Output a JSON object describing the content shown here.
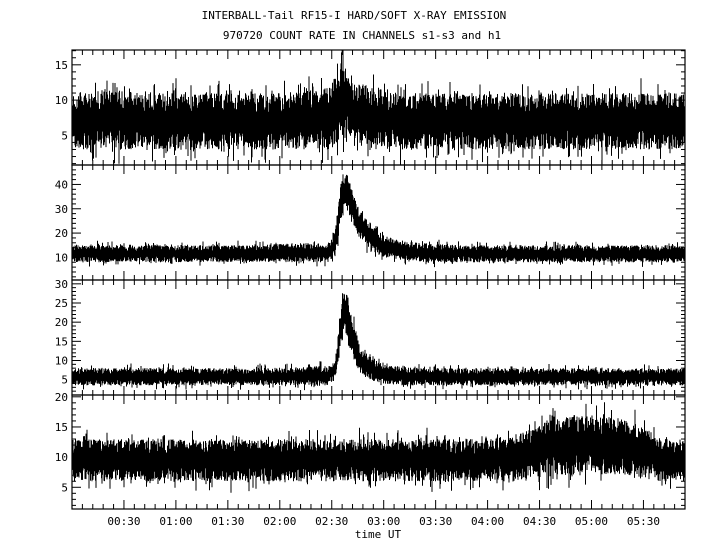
{
  "chart_data": {
    "type": "line",
    "title": "INTERBALL-Tail RF15-I HARD/SOFT X-RAY EMISSION",
    "subtitle": "970720  COUNT RATE IN CHANNELS s1-s3 and h1",
    "xlabel": "time UT",
    "xlim": [
      "00:00",
      "05:54"
    ],
    "x_tick_labels": [
      "00:30",
      "01:00",
      "01:30",
      "02:00",
      "02:30",
      "03:00",
      "03:30",
      "04:00",
      "04:30",
      "05:00",
      "05:30"
    ],
    "grid": false,
    "line_color": "#000000",
    "x": [
      "00:00",
      "00:20",
      "00:40",
      "01:00",
      "01:20",
      "01:40",
      "02:00",
      "02:20",
      "02:28",
      "02:32",
      "02:34",
      "02:36",
      "02:38",
      "02:40",
      "02:43",
      "02:46",
      "02:50",
      "02:55",
      "03:00",
      "03:10",
      "03:20",
      "03:40",
      "04:00",
      "04:20",
      "04:40",
      "04:50",
      "05:00",
      "05:10",
      "05:20",
      "05:30",
      "05:40",
      "05:54"
    ],
    "panels": [
      {
        "ylim": [
          0.8,
          17.1
        ],
        "y_tick_labels": [
          "5",
          "10",
          "15"
        ],
        "low": [
          3,
          3,
          3,
          3,
          3,
          3,
          3,
          3,
          3,
          3.5,
          4,
          5,
          5.5,
          5,
          4,
          3.5,
          3,
          3,
          3,
          3,
          3,
          3,
          3,
          3,
          3,
          3,
          3,
          3,
          3,
          3,
          3,
          3
        ],
        "high": [
          11,
          11.5,
          11,
          11,
          11,
          11,
          11,
          11.5,
          12,
          13,
          14,
          15,
          15,
          14,
          13,
          12.5,
          12,
          12,
          11.5,
          11,
          11,
          11,
          11,
          11,
          11,
          11,
          11,
          11,
          11,
          11,
          11,
          11
        ]
      },
      {
        "ylim": [
          0.7,
          48
        ],
        "y_tick_labels": [
          "10",
          "20",
          "30",
          "40"
        ],
        "low": [
          8,
          8,
          8,
          8,
          8,
          8,
          8,
          8,
          8,
          10,
          18,
          28,
          30,
          27,
          22,
          18,
          15,
          12,
          10,
          9,
          8,
          8,
          8,
          8,
          8,
          8,
          8,
          8,
          8,
          8,
          8,
          8
        ],
        "high": [
          15,
          15,
          15,
          15,
          15,
          15,
          15.5,
          16,
          16,
          22,
          33,
          44,
          47,
          42,
          35,
          30,
          26,
          22,
          19,
          17,
          16,
          15,
          15,
          15,
          15,
          15,
          15,
          15,
          15,
          15,
          15,
          15
        ]
      },
      {
        "ylim": [
          1,
          31
        ],
        "y_tick_labels": [
          "5",
          "10",
          "15",
          "20",
          "25",
          "30"
        ],
        "low": [
          3.5,
          3.5,
          3.5,
          3.5,
          3.5,
          3.5,
          3.5,
          3.5,
          3.5,
          5,
          10,
          15,
          17,
          14,
          10,
          7,
          5.5,
          4.5,
          4,
          3.5,
          3.5,
          3.5,
          3.5,
          3.5,
          3.5,
          3.5,
          3.5,
          3.5,
          3.5,
          3.5,
          3.5,
          3.5
        ],
        "high": [
          8,
          8,
          8,
          8,
          8,
          8,
          8,
          8.5,
          8.5,
          10,
          18,
          27,
          29,
          25,
          19,
          14,
          12,
          10,
          9,
          8.5,
          8,
          8,
          8,
          8,
          8,
          8,
          8,
          8,
          8,
          8,
          8,
          8
        ]
      },
      {
        "ylim": [
          1.4,
          20.3
        ],
        "y_tick_labels": [
          "5",
          "10",
          "15",
          "20"
        ],
        "low": [
          6,
          6,
          6,
          6,
          6,
          6,
          6,
          6,
          6,
          6,
          6,
          6,
          6,
          6,
          6,
          6,
          6,
          6,
          6,
          6,
          6,
          6,
          6,
          6,
          7,
          7,
          7,
          7,
          7,
          6.5,
          6,
          6
        ],
        "high": [
          13,
          13,
          13,
          13,
          13,
          13,
          13,
          13,
          13,
          13,
          13,
          13,
          13,
          13,
          13,
          13,
          13,
          13,
          13,
          13,
          13,
          13,
          13,
          14,
          17,
          17,
          17,
          17,
          16,
          15,
          13,
          13
        ]
      }
    ]
  }
}
